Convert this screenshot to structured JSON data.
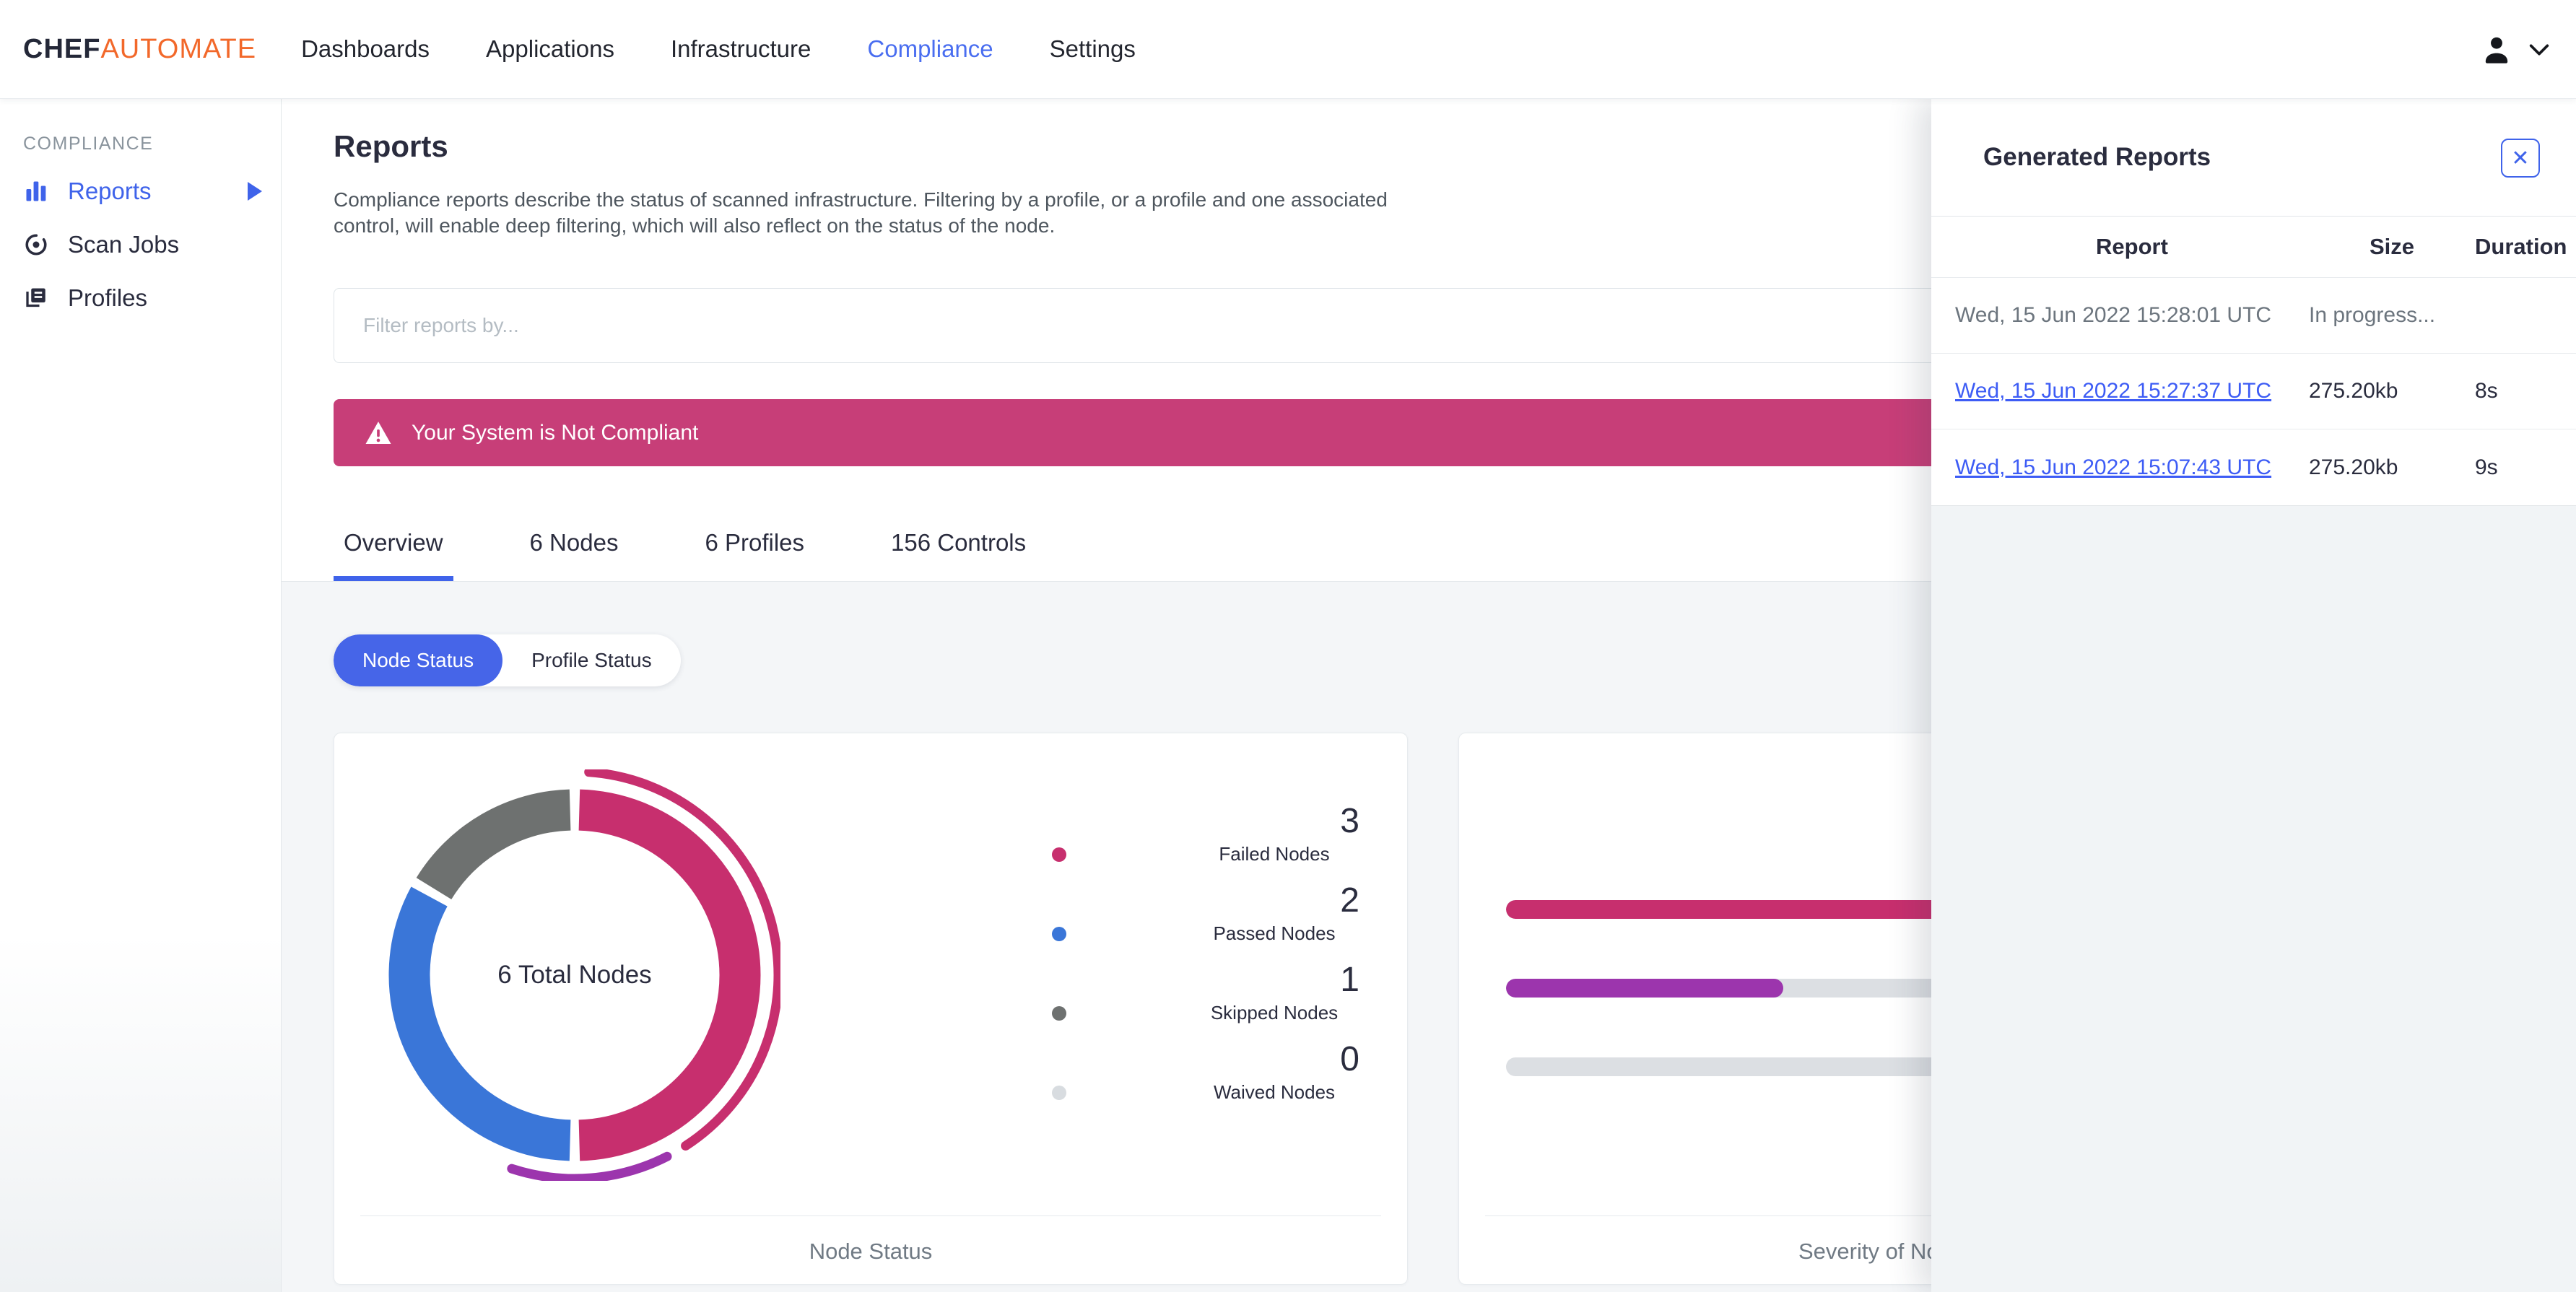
{
  "navbar": {
    "logo": {
      "part1": "CHEF",
      "part2": "AUTOMATE"
    },
    "items": [
      {
        "label": "Dashboards",
        "active": false
      },
      {
        "label": "Applications",
        "active": false
      },
      {
        "label": "Infrastructure",
        "active": false
      },
      {
        "label": "Compliance",
        "active": true
      },
      {
        "label": "Settings",
        "active": false
      }
    ]
  },
  "sidebar": {
    "section_label": "COMPLIANCE",
    "items": [
      {
        "label": "Reports",
        "active": true
      },
      {
        "label": "Scan Jobs",
        "active": false
      },
      {
        "label": "Profiles",
        "active": false
      }
    ]
  },
  "page": {
    "title": "Reports",
    "description": "Compliance reports describe the status of scanned infrastructure. Filtering by a profile, or a profile and one associated control, will enable deep filtering, which will also reflect on the status of the node."
  },
  "filter": {
    "placeholder": "Filter reports by..."
  },
  "alert": {
    "message": "Your System is Not Compliant",
    "color": "#c73e78"
  },
  "tabs": [
    {
      "label": "Overview",
      "active": true
    },
    {
      "label": "6 Nodes",
      "active": false
    },
    {
      "label": "6 Profiles",
      "active": false
    },
    {
      "label": "156 Controls",
      "active": false
    }
  ],
  "status_toggle": [
    {
      "label": "Node Status",
      "active": true
    },
    {
      "label": "Profile Status",
      "active": false
    }
  ],
  "node_status_card": {
    "center_label": "6 Total Nodes",
    "caption": "Node Status",
    "legend": [
      {
        "value": "3",
        "label": "Failed Nodes",
        "color": "#c72f6e"
      },
      {
        "value": "2",
        "label": "Passed Nodes",
        "color": "#3a76d8"
      },
      {
        "value": "1",
        "label": "Skipped Nodes",
        "color": "#6e7170"
      },
      {
        "value": "0",
        "label": "Waived Nodes",
        "color": "#d8dce0"
      }
    ]
  },
  "severity_card": {
    "caption": "Severity of Node Failures"
  },
  "chart_data": [
    {
      "type": "pie",
      "variant": "donut",
      "title": "Node Status",
      "center_label": "6 Total Nodes",
      "categories": [
        "Failed Nodes",
        "Passed Nodes",
        "Skipped Nodes",
        "Waived Nodes"
      ],
      "values": [
        3,
        2,
        1,
        0
      ],
      "colors": [
        "#c72f6e",
        "#3a76d8",
        "#6e7170",
        "#d8dce0"
      ],
      "outer_arcs": [
        {
          "color": "#c72f6e",
          "start_deg": 4,
          "end_deg": 147
        },
        {
          "color": "#9c35ad",
          "start_deg": 153,
          "end_deg": 198
        }
      ]
    },
    {
      "type": "bar",
      "orientation": "horizontal",
      "title": "Severity of Node Failures",
      "bars": [
        {
          "color": "#c72f6e",
          "fill_fraction": 1
        },
        {
          "color": "#9c35ad",
          "fill_fraction": 0.33
        },
        {
          "color": "#dcdfe3",
          "fill_fraction": 0
        }
      ]
    }
  ],
  "generated_reports": {
    "title": "Generated Reports",
    "close_icon": "✕",
    "columns": [
      "Report",
      "Size",
      "Duration"
    ],
    "rows": [
      {
        "report": "Wed, 15 Jun 2022 15:28:01 UTC",
        "size": "In progress...",
        "duration": "",
        "link": false
      },
      {
        "report": "Wed, 15 Jun 2022 15:27:37 UTC",
        "size": "275.20kb",
        "duration": "8s",
        "link": true
      },
      {
        "report": "Wed, 15 Jun 2022 15:07:43 UTC",
        "size": "275.20kb",
        "duration": "9s",
        "link": true
      }
    ]
  }
}
